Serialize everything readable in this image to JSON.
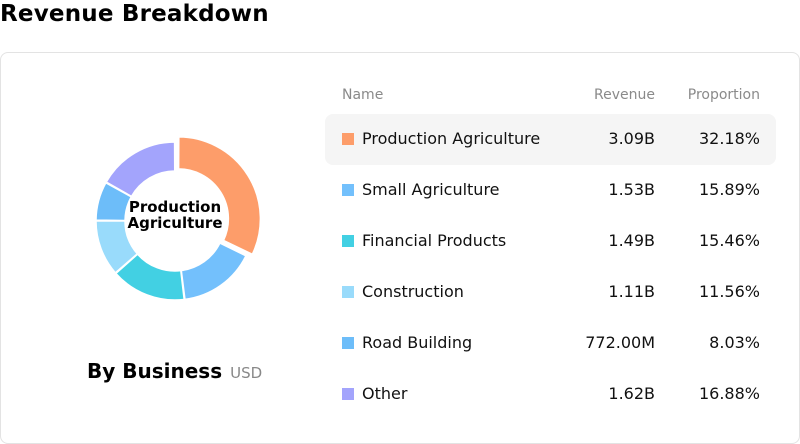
{
  "page": {
    "title": "Revenue Breakdown"
  },
  "chart": {
    "center_label": "Production Agriculture",
    "caption_title": "By Business",
    "caption_unit": "USD"
  },
  "table": {
    "headers": {
      "name": "Name",
      "revenue": "Revenue",
      "proportion": "Proportion"
    },
    "active_index": 0
  },
  "chart_data": {
    "type": "pie",
    "title": "By Business",
    "unit": "USD",
    "categories": [
      "Production Agriculture",
      "Small Agriculture",
      "Financial Products",
      "Construction",
      "Road Building",
      "Other"
    ],
    "revenue_labels": [
      "3.09B",
      "1.53B",
      "1.49B",
      "1.11B",
      "772.00M",
      "1.62B"
    ],
    "values": [
      32.18,
      15.89,
      15.46,
      11.56,
      8.03,
      16.88
    ],
    "value_labels": [
      "32.18%",
      "15.89%",
      "15.46%",
      "11.56%",
      "8.03%",
      "16.88%"
    ],
    "colors": [
      "#FD9D6A",
      "#73C0FC",
      "#42D0E3",
      "#99DBFB",
      "#6DBDF9",
      "#A3A4FC"
    ],
    "highlighted": "Production Agriculture"
  }
}
